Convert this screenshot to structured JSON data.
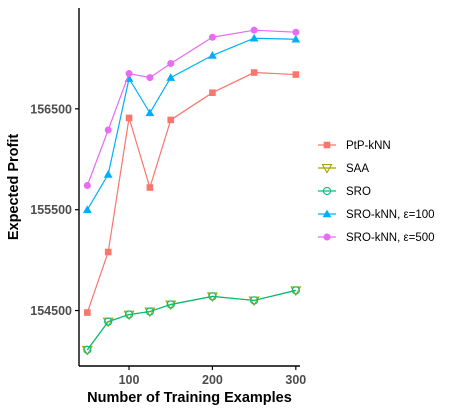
{
  "chart_data": {
    "type": "line",
    "title": "",
    "xlabel": "Number of Training Examples",
    "ylabel": "Expected Profit",
    "x": [
      50,
      75,
      100,
      125,
      150,
      200,
      250,
      300
    ],
    "xlim": [
      40,
      305
    ],
    "ylim": [
      153950,
      157500
    ],
    "xticks": [
      100,
      200,
      300
    ],
    "yticks": [
      154500,
      155500,
      156500
    ],
    "xtick_labels": [
      "100",
      "200",
      "300"
    ],
    "ytick_labels": [
      "154500",
      "155500",
      "156500"
    ],
    "grid": false,
    "legend_position": "right",
    "series": [
      {
        "name": "PtP-kNN",
        "color": "#F8766D",
        "marker": "square",
        "values": [
          154480,
          155080,
          156410,
          155720,
          156390,
          156660,
          156860,
          156840
        ]
      },
      {
        "name": "SAA",
        "color": "#A3A500",
        "marker": "triangle-down-open",
        "values": [
          154110,
          154390,
          154460,
          154490,
          154560,
          154640,
          154600,
          154700
        ]
      },
      {
        "name": "SRO",
        "color": "#00BF7D",
        "marker": "circle-open",
        "values": [
          154110,
          154390,
          154460,
          154490,
          154560,
          154640,
          154600,
          154700
        ]
      },
      {
        "name": "SRO-kNN, ε=100",
        "color": "#00B0F6",
        "marker": "triangle-up",
        "values": [
          155500,
          155850,
          156800,
          156460,
          156810,
          157030,
          157200,
          157190
        ]
      },
      {
        "name": "SRO-kNN, ε=500",
        "color": "#E76BF3",
        "marker": "circle",
        "values": [
          155740,
          156290,
          156850,
          156810,
          156950,
          157210,
          157280,
          157260
        ]
      }
    ]
  }
}
